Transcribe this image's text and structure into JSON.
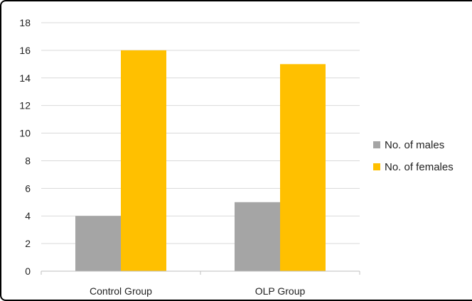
{
  "chart_data": {
    "type": "bar",
    "title": "",
    "xlabel": "",
    "ylabel": "",
    "categories": [
      "Control Group",
      "OLP Group"
    ],
    "series": [
      {
        "name": "No. of males",
        "values": [
          4,
          5
        ],
        "color": "#a5a5a5"
      },
      {
        "name": "No. of females",
        "values": [
          16,
          15
        ],
        "color": "#ffc000"
      }
    ],
    "ylim": [
      0,
      18
    ],
    "yticks": [
      "0",
      "2",
      "4",
      "6",
      "8",
      "10",
      "12",
      "14",
      "16",
      "18"
    ],
    "grid": true,
    "legend_position": "right"
  }
}
